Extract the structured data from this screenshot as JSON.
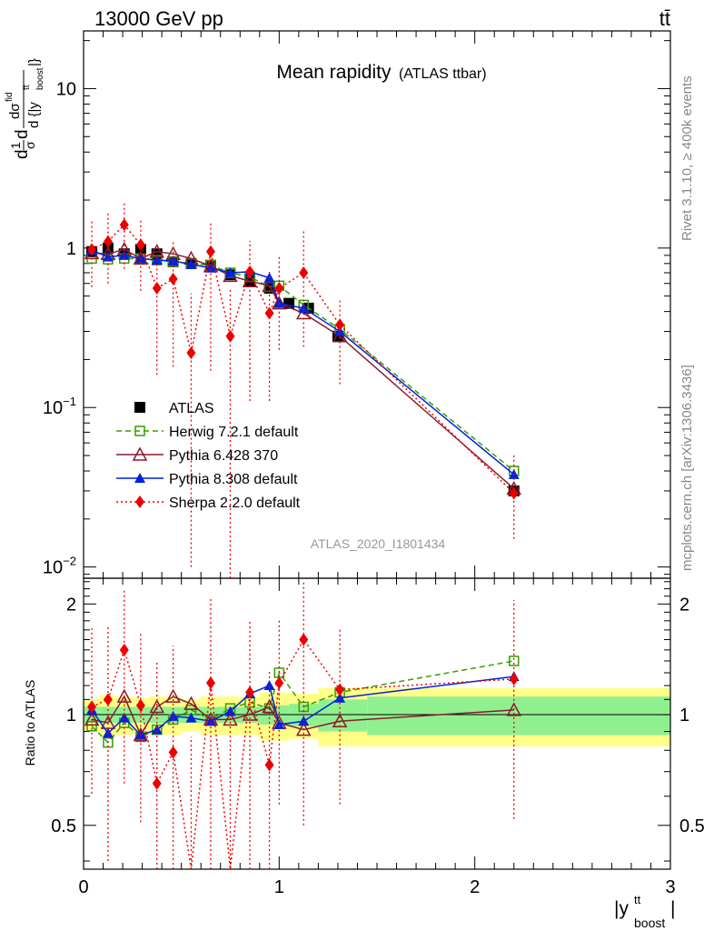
{
  "header": {
    "energy": "13000 GeV pp",
    "process": "tt̄",
    "rivet": "Rivet 3.1.10, ≥ 400k events",
    "mcplots": "mcplots.cern.ch [arXiv:1306.3436]",
    "analysis_id": "ATLAS_2020_I1801434"
  },
  "chart_data": {
    "type": "line",
    "title": "Mean rapidity",
    "subtitle": "(ATLAS ttbar)",
    "xlim": [
      0,
      3
    ],
    "x_ticks": [
      0,
      1,
      2,
      3
    ],
    "xlabel": "|y",
    "xlabel_sup": "tt",
    "xlabel_sub": "boost",
    "xlabel_end": "|",
    "main": {
      "yscale": "log",
      "ylim": [
        0.0085,
        23
      ],
      "y_ticks": [
        {
          "v": 0.01,
          "mant": "10",
          "exp": "−2"
        },
        {
          "v": 0.1,
          "mant": "10",
          "exp": "−1"
        },
        {
          "v": 1,
          "mant": "1",
          "exp": ""
        },
        {
          "v": 10,
          "mant": "10",
          "exp": ""
        }
      ],
      "ylabel": {
        "parts": [
          "d",
          "1",
          "σ",
          "d",
          "dσ",
          "fid",
          "d {|y",
          "tt",
          "boost",
          "|}"
        ]
      }
    },
    "ratio": {
      "ylim": [
        0.38,
        2.35
      ],
      "y_ticks": [
        0.5,
        1,
        2
      ],
      "ylabel": "Ratio to ATLAS",
      "bands": [
        {
          "x0": 0.0,
          "x1": 0.083,
          "in": 0.05,
          "out": 0.1
        },
        {
          "x0": 0.083,
          "x1": 0.166,
          "in": 0.05,
          "out": 0.13
        },
        {
          "x0": 0.166,
          "x1": 0.25,
          "in": 0.05,
          "out": 0.12
        },
        {
          "x0": 0.25,
          "x1": 0.333,
          "in": 0.05,
          "out": 0.11
        },
        {
          "x0": 0.333,
          "x1": 0.5,
          "in": 0.05,
          "out": 0.12
        },
        {
          "x0": 0.5,
          "x1": 0.6,
          "in": 0.05,
          "out": 0.1
        },
        {
          "x0": 0.6,
          "x1": 0.9,
          "in": 0.05,
          "out": 0.12
        },
        {
          "x0": 0.9,
          "x1": 1.05,
          "in": 0.06,
          "out": 0.15
        },
        {
          "x0": 1.05,
          "x1": 1.2,
          "in": 0.07,
          "out": 0.14
        },
        {
          "x0": 1.2,
          "x1": 1.45,
          "in": 0.1,
          "out": 0.18
        },
        {
          "x0": 1.45,
          "x1": 3.0,
          "in": 0.12,
          "out": 0.18
        }
      ]
    },
    "legend_position": "center-left",
    "series": [
      {
        "name": "ATLAS",
        "key": "atlas",
        "color": "#000000",
        "marker": "square-filled",
        "line": "none",
        "x": [
          0.042,
          0.125,
          0.208,
          0.292,
          0.375,
          0.458,
          0.55,
          0.65,
          0.75,
          0.85,
          0.95,
          1.05,
          1.15,
          1.3,
          2.2
        ],
        "y": [
          0.95,
          1.0,
          0.92,
          0.98,
          0.92,
          0.82,
          0.8,
          0.78,
          0.68,
          0.62,
          0.56,
          0.45,
          0.42,
          0.28,
          0.03
        ]
      },
      {
        "name": "Herwig 7.2.1 default",
        "key": "herwig",
        "color": "#3a9c00",
        "marker": "square-open",
        "line": "dashed",
        "x": [
          0.042,
          0.125,
          0.208,
          0.292,
          0.375,
          0.458,
          0.55,
          0.65,
          0.75,
          0.85,
          0.95,
          1.0,
          1.125,
          1.31,
          2.2
        ],
        "y": [
          0.86,
          0.85,
          0.86,
          0.86,
          0.84,
          0.82,
          0.8,
          0.78,
          0.7,
          0.66,
          0.57,
          0.58,
          0.44,
          0.31,
          0.04
        ],
        "ratio": [
          0.93,
          0.84,
          0.95,
          0.87,
          0.91,
          0.97,
          1.03,
          0.97,
          1.04,
          1.08,
          1.04,
          1.3,
          1.05,
          1.15,
          1.4
        ]
      },
      {
        "name": "Pythia 6.428 370",
        "key": "py6",
        "color": "#8b1a2b",
        "marker": "triangle-open",
        "line": "solid",
        "x": [
          0.042,
          0.125,
          0.208,
          0.292,
          0.375,
          0.458,
          0.55,
          0.65,
          0.75,
          0.85,
          0.95,
          1.0,
          1.125,
          1.31,
          2.2
        ],
        "y": [
          0.93,
          0.92,
          0.98,
          0.86,
          0.95,
          0.92,
          0.86,
          0.77,
          0.67,
          0.62,
          0.58,
          0.45,
          0.39,
          0.28,
          0.031
        ],
        "ratio": [
          0.97,
          0.95,
          1.12,
          0.88,
          1.05,
          1.12,
          1.07,
          0.97,
          0.97,
          1.0,
          1.05,
          0.95,
          0.91,
          0.96,
          1.03
        ]
      },
      {
        "name": "Pythia 8.308 default",
        "key": "py8",
        "color": "#0022dd",
        "marker": "triangle-filled",
        "line": "solid",
        "x": [
          0.042,
          0.125,
          0.208,
          0.292,
          0.375,
          0.458,
          0.55,
          0.65,
          0.75,
          0.85,
          0.95,
          1.0,
          1.125,
          1.31,
          2.2
        ],
        "y": [
          0.97,
          0.88,
          0.9,
          0.86,
          0.84,
          0.83,
          0.79,
          0.75,
          0.7,
          0.71,
          0.65,
          0.45,
          0.42,
          0.3,
          0.038
        ],
        "ratio": [
          1.03,
          0.89,
          0.98,
          0.88,
          0.91,
          0.99,
          0.98,
          0.96,
          1.02,
          1.14,
          1.2,
          0.94,
          0.96,
          1.11,
          1.27
        ]
      },
      {
        "name": "Sherpa 2.2.0 default",
        "key": "sherpa",
        "color": "#ee0000",
        "marker": "diamond-filled",
        "line": "dotted",
        "x": [
          0.042,
          0.125,
          0.208,
          0.292,
          0.375,
          0.458,
          0.55,
          0.65,
          0.75,
          0.85,
          0.95,
          1.0,
          1.125,
          1.31,
          2.2
        ],
        "y": [
          0.98,
          1.1,
          1.4,
          1.05,
          0.56,
          0.64,
          0.22,
          0.95,
          0.28,
          0.71,
          0.39,
          0.56,
          0.7,
          0.33,
          0.029
        ],
        "yerr_lo": [
          0.41,
          0.5,
          0.66,
          0.51,
          0.4,
          0.46,
          0.21,
          0.78,
          0.275,
          0.6,
          0.28,
          0.33,
          0.46,
          0.19,
          0.014
        ],
        "yerr_hi": [
          0.55,
          0.6,
          0.56,
          0.45,
          0.4,
          0.46,
          0.3,
          0.5,
          0.28,
          0.4,
          0.34,
          0.35,
          0.6,
          0.15,
          0.021
        ],
        "ratio": [
          1.05,
          1.1,
          1.5,
          1.06,
          0.65,
          0.79,
          0.27,
          1.22,
          0.37,
          1.15,
          0.73,
          1.22,
          1.6,
          1.17,
          1.25
        ],
        "ratio_lo": [
          0.44,
          0.7,
          0.85,
          0.55,
          0.45,
          0.55,
          0.25,
          0.85,
          0.35,
          0.8,
          0.5,
          0.65,
          1.1,
          0.6,
          0.73
        ],
        "ratio_hi": [
          0.7,
          0.65,
          0.7,
          0.6,
          0.75,
          0.75,
          0.6,
          0.85,
          0.65,
          0.65,
          0.6,
          0.6,
          0.7,
          0.55,
          0.8
        ]
      }
    ]
  }
}
